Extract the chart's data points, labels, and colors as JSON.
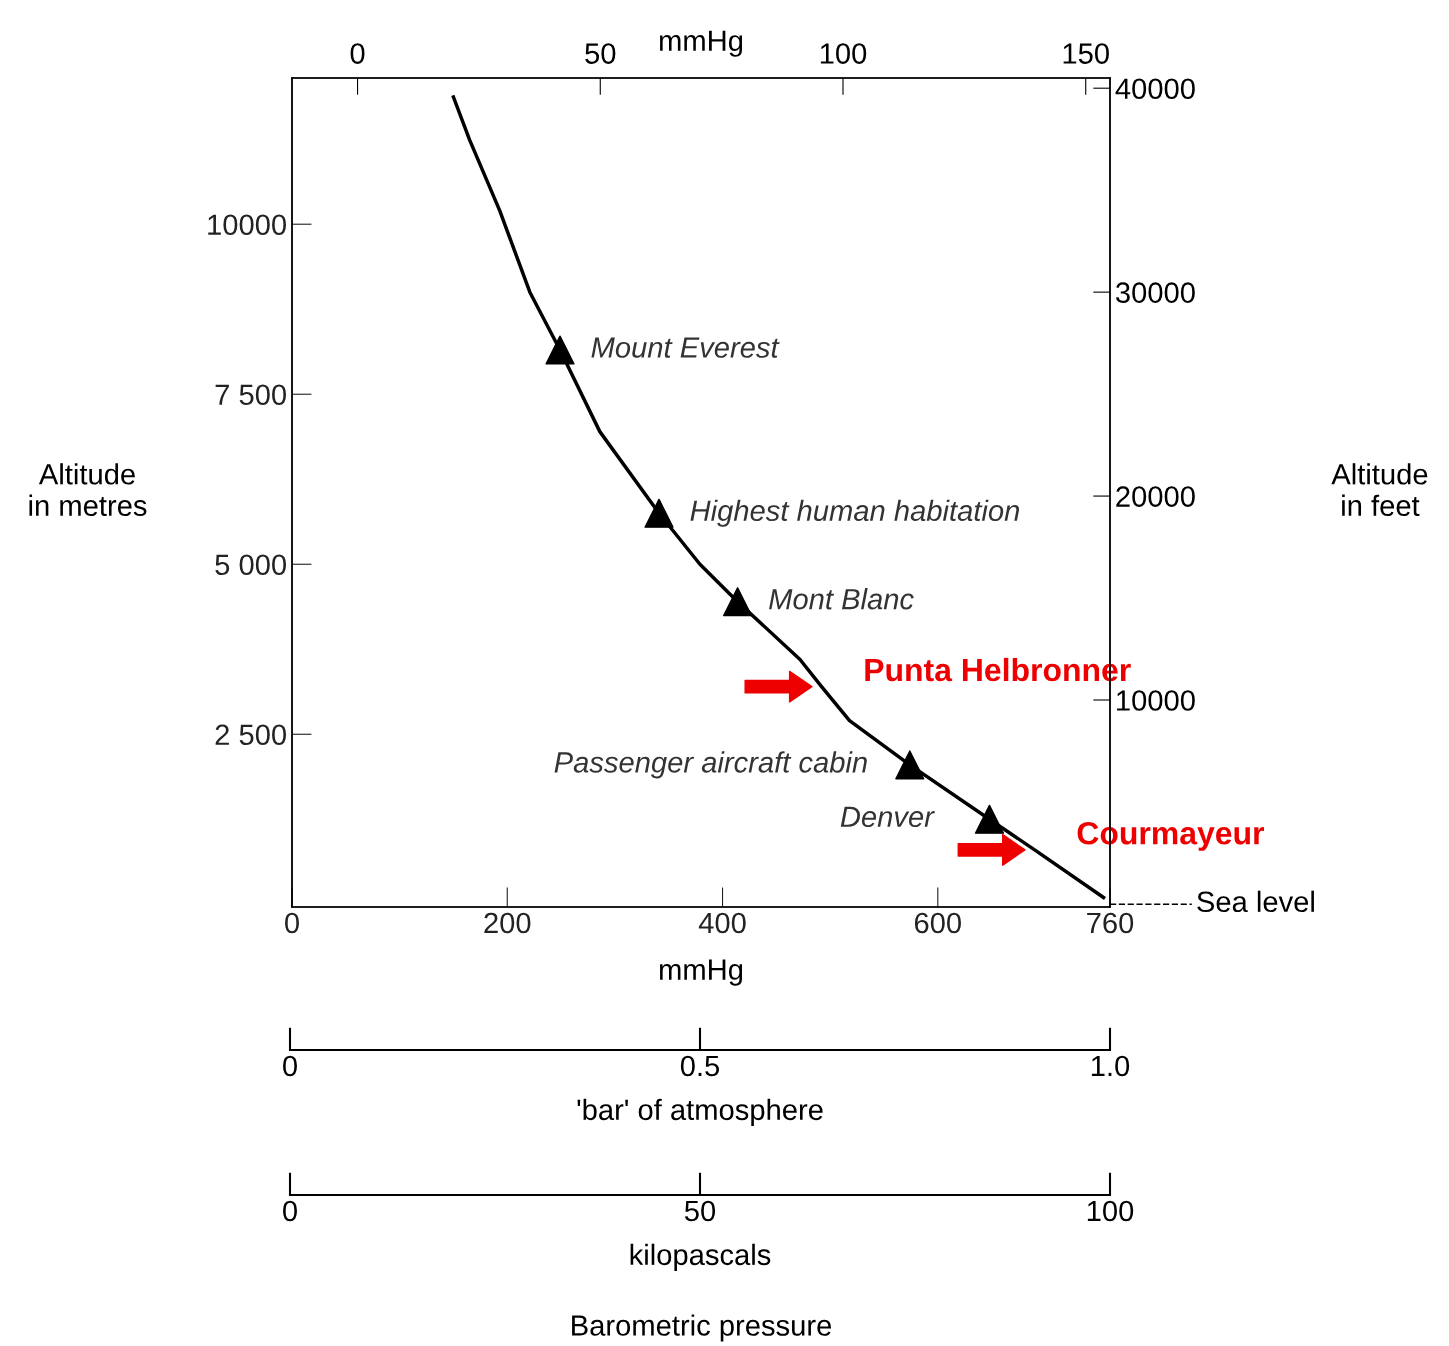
{
  "chart_data": [
    {
      "type": "line",
      "xlabel": "mmHg",
      "ylabel": "Altitude\nin metres",
      "y2label": "Altitude\nin feet",
      "x2label": "mmHg",
      "xlim": [
        0,
        760
      ],
      "xticks": [
        0,
        200,
        400,
        600,
        760
      ],
      "x2lim": [
        -13.5,
        155
      ],
      "x2ticks": [
        0,
        50,
        100,
        150
      ],
      "ylim": [
        -40,
        12150
      ],
      "yticks": [
        {
          "value": 2500,
          "label": "2 500"
        },
        {
          "value": 5000,
          "label": "5 000"
        },
        {
          "value": 7500,
          "label": "7 500"
        },
        10000
      ],
      "y2lim": [
        -150,
        40500
      ],
      "y2ticks": [
        10000,
        20000,
        30000,
        40000
      ],
      "series": [
        {
          "color": "#000000",
          "line_style": "solid",
          "x": [
            150,
            165,
            193,
            221,
            249,
            286,
            341,
            379,
            414,
            472,
            492,
            518,
            574,
            648,
            690,
            754
          ],
          "values": [
            11870,
            11240,
            10200,
            9000,
            8150,
            6950,
            5750,
            5000,
            4450,
            3600,
            3200,
            2700,
            2050,
            1250,
            800,
            100
          ]
        },
        {
          "type": "scatter",
          "color": "#000000",
          "marker": "triangle",
          "x": [
            249,
            341,
            414,
            574,
            648
          ],
          "values": [
            8150,
            5750,
            4450,
            2050,
            1250
          ]
        }
      ],
      "ref_lines": [
        {
          "axis": "y",
          "value": 0,
          "label": "Sea level",
          "line_style": "dashed",
          "color": "#000000"
        }
      ],
      "annotations": [
        {
          "text": "Mount Everest",
          "x": 249,
          "y": 8150
        },
        {
          "text": "Highest human habitation",
          "x": 341,
          "y": 5750
        },
        {
          "text": "Mont Blanc",
          "x": 414,
          "y": 4450
        },
        {
          "text": "Passenger aircraft cabin",
          "x": 574,
          "y": 2050
        },
        {
          "text": "Denver",
          "x": 648,
          "y": 1250
        },
        {
          "text": "Punta Helbronner",
          "x": 492,
          "y": 3200
        },
        {
          "text": "Courmayeur",
          "x": 690,
          "y": 800
        }
      ]
    },
    {
      "type": "other",
      "xlabel": "'bar' of atmosphere",
      "categories": [
        "0",
        "0.5",
        "1.0"
      ]
    },
    {
      "type": "other",
      "xlabel": "kilopascals",
      "categories": [
        "0",
        "50",
        "100"
      ],
      "annotations": [
        "Barometric pressure"
      ]
    }
  ]
}
